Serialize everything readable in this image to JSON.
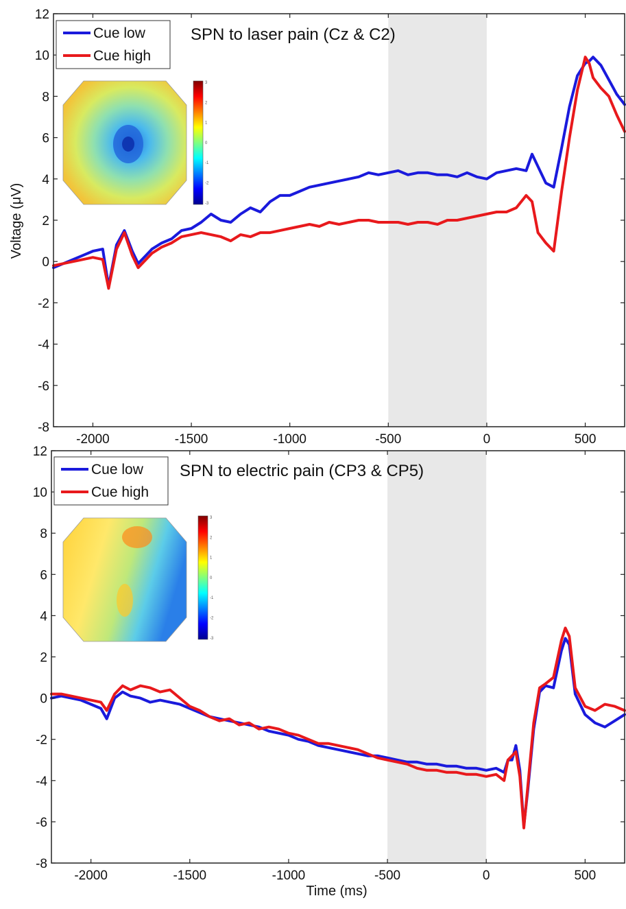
{
  "figure": {
    "xlabel": "Time (ms)",
    "ylabel": "Voltage (μV)"
  },
  "chart_data": [
    {
      "type": "line",
      "title": "SPN to laser pain (Cz & C2)",
      "xlabel": "",
      "ylabel": "Voltage (μV)",
      "xlim": [
        -2200,
        700
      ],
      "ylim": [
        -8,
        12
      ],
      "xticks": [
        -2000,
        -1500,
        -1000,
        -500,
        0,
        500
      ],
      "yticks": [
        -8,
        -6,
        -4,
        -2,
        0,
        2,
        4,
        6,
        8,
        10,
        12
      ],
      "shaded_interval": [
        -500,
        0
      ],
      "legend": "top-left",
      "colorbar": [
        "3",
        "2",
        "1",
        "0",
        "-1",
        "-2",
        "-3"
      ],
      "series": [
        {
          "name": "Cue low",
          "color": "#1a1adc",
          "x": [
            -2200,
            -2150,
            -2100,
            -2050,
            -2000,
            -1950,
            -1920,
            -1880,
            -1840,
            -1800,
            -1770,
            -1730,
            -1700,
            -1650,
            -1600,
            -1550,
            -1500,
            -1450,
            -1400,
            -1350,
            -1300,
            -1250,
            -1200,
            -1150,
            -1100,
            -1050,
            -1000,
            -950,
            -900,
            -850,
            -800,
            -750,
            -700,
            -650,
            -600,
            -550,
            -500,
            -450,
            -400,
            -350,
            -300,
            -250,
            -200,
            -150,
            -100,
            -50,
            0,
            50,
            100,
            150,
            200,
            230,
            260,
            300,
            340,
            380,
            420,
            460,
            500,
            520,
            540,
            580,
            620,
            660,
            700
          ],
          "y": [
            -0.3,
            -0.1,
            0.1,
            0.3,
            0.5,
            0.6,
            -1.2,
            0.8,
            1.5,
            0.5,
            -0.1,
            0.3,
            0.6,
            0.9,
            1.1,
            1.5,
            1.6,
            1.9,
            2.3,
            2.0,
            1.9,
            2.3,
            2.6,
            2.4,
            2.9,
            3.2,
            3.2,
            3.4,
            3.6,
            3.7,
            3.8,
            3.9,
            4.0,
            4.1,
            4.3,
            4.2,
            4.3,
            4.4,
            4.2,
            4.3,
            4.3,
            4.2,
            4.2,
            4.1,
            4.3,
            4.1,
            4.0,
            4.3,
            4.4,
            4.5,
            4.4,
            5.2,
            4.6,
            3.8,
            3.6,
            5.5,
            7.5,
            9.0,
            9.6,
            9.7,
            9.9,
            9.5,
            8.8,
            8.1,
            7.6
          ]
        },
        {
          "name": "Cue high",
          "color": "#e8191c",
          "x": [
            -2200,
            -2150,
            -2100,
            -2050,
            -2000,
            -1950,
            -1920,
            -1880,
            -1840,
            -1800,
            -1770,
            -1730,
            -1700,
            -1650,
            -1600,
            -1550,
            -1500,
            -1450,
            -1400,
            -1350,
            -1300,
            -1250,
            -1200,
            -1150,
            -1100,
            -1050,
            -1000,
            -950,
            -900,
            -850,
            -800,
            -750,
            -700,
            -650,
            -600,
            -550,
            -500,
            -450,
            -400,
            -350,
            -300,
            -250,
            -200,
            -150,
            -100,
            -50,
            0,
            50,
            100,
            150,
            200,
            230,
            260,
            300,
            340,
            380,
            420,
            460,
            500,
            520,
            540,
            580,
            620,
            660,
            700
          ],
          "y": [
            -0.2,
            -0.1,
            0.0,
            0.1,
            0.2,
            0.1,
            -1.3,
            0.6,
            1.4,
            0.3,
            -0.3,
            0.1,
            0.4,
            0.7,
            0.9,
            1.2,
            1.3,
            1.4,
            1.3,
            1.2,
            1.0,
            1.3,
            1.2,
            1.4,
            1.4,
            1.5,
            1.6,
            1.7,
            1.8,
            1.7,
            1.9,
            1.8,
            1.9,
            2.0,
            2.0,
            1.9,
            1.9,
            1.9,
            1.8,
            1.9,
            1.9,
            1.8,
            2.0,
            2.0,
            2.1,
            2.2,
            2.3,
            2.4,
            2.4,
            2.6,
            3.2,
            2.9,
            1.4,
            0.9,
            0.5,
            3.4,
            6.0,
            8.3,
            9.9,
            9.6,
            8.9,
            8.4,
            8.0,
            7.1,
            6.3
          ]
        }
      ]
    },
    {
      "type": "line",
      "title": "SPN to electric pain (CP3 & CP5)",
      "xlabel": "Time (ms)",
      "ylabel": "",
      "xlim": [
        -2200,
        700
      ],
      "ylim": [
        -8,
        12
      ],
      "xticks": [
        -2000,
        -1500,
        -1000,
        -500,
        0,
        500
      ],
      "yticks": [
        -8,
        -6,
        -4,
        -2,
        0,
        2,
        4,
        6,
        8,
        10,
        12
      ],
      "shaded_interval": [
        -500,
        0
      ],
      "legend": "top-left",
      "colorbar": [
        "3",
        "2",
        "1",
        "0",
        "-1",
        "-2",
        "-3"
      ],
      "series": [
        {
          "name": "Cue low",
          "color": "#1a1adc",
          "x": [
            -2200,
            -2150,
            -2100,
            -2050,
            -2000,
            -1950,
            -1920,
            -1880,
            -1840,
            -1800,
            -1750,
            -1700,
            -1650,
            -1600,
            -1550,
            -1500,
            -1450,
            -1400,
            -1350,
            -1300,
            -1250,
            -1200,
            -1150,
            -1100,
            -1050,
            -1000,
            -950,
            -900,
            -850,
            -800,
            -750,
            -700,
            -650,
            -600,
            -550,
            -500,
            -450,
            -400,
            -350,
            -300,
            -250,
            -200,
            -150,
            -100,
            -50,
            0,
            50,
            90,
            110,
            130,
            150,
            170,
            190,
            210,
            240,
            270,
            300,
            340,
            380,
            400,
            420,
            450,
            500,
            550,
            600,
            650,
            700
          ],
          "y": [
            0.0,
            0.1,
            0.0,
            -0.1,
            -0.3,
            -0.5,
            -1.0,
            0.0,
            0.3,
            0.1,
            0.0,
            -0.2,
            -0.1,
            -0.2,
            -0.3,
            -0.5,
            -0.7,
            -0.9,
            -1.0,
            -1.1,
            -1.2,
            -1.3,
            -1.4,
            -1.6,
            -1.7,
            -1.8,
            -2.0,
            -2.1,
            -2.3,
            -2.4,
            -2.5,
            -2.6,
            -2.7,
            -2.8,
            -2.8,
            -2.9,
            -3.0,
            -3.1,
            -3.1,
            -3.2,
            -3.2,
            -3.3,
            -3.3,
            -3.4,
            -3.4,
            -3.5,
            -3.4,
            -3.6,
            -3.0,
            -3.0,
            -2.3,
            -3.5,
            -6.2,
            -4.5,
            -1.5,
            0.3,
            0.6,
            0.5,
            2.3,
            2.9,
            2.6,
            0.2,
            -0.8,
            -1.2,
            -1.4,
            -1.1,
            -0.8
          ]
        },
        {
          "name": "Cue high",
          "color": "#e8191c",
          "x": [
            -2200,
            -2150,
            -2100,
            -2050,
            -2000,
            -1950,
            -1920,
            -1880,
            -1840,
            -1800,
            -1750,
            -1700,
            -1650,
            -1600,
            -1550,
            -1500,
            -1450,
            -1400,
            -1350,
            -1300,
            -1250,
            -1200,
            -1150,
            -1100,
            -1050,
            -1000,
            -950,
            -900,
            -850,
            -800,
            -750,
            -700,
            -650,
            -600,
            -550,
            -500,
            -450,
            -400,
            -350,
            -300,
            -250,
            -200,
            -150,
            -100,
            -50,
            0,
            50,
            90,
            110,
            130,
            150,
            170,
            190,
            210,
            240,
            270,
            300,
            340,
            380,
            400,
            420,
            450,
            500,
            550,
            600,
            650,
            700
          ],
          "y": [
            0.2,
            0.2,
            0.1,
            0.0,
            -0.1,
            -0.2,
            -0.6,
            0.2,
            0.6,
            0.4,
            0.6,
            0.5,
            0.3,
            0.4,
            0.0,
            -0.4,
            -0.6,
            -0.9,
            -1.1,
            -1.0,
            -1.3,
            -1.2,
            -1.5,
            -1.4,
            -1.5,
            -1.7,
            -1.8,
            -2.0,
            -2.2,
            -2.2,
            -2.3,
            -2.4,
            -2.5,
            -2.7,
            -2.9,
            -3.0,
            -3.1,
            -3.2,
            -3.4,
            -3.5,
            -3.5,
            -3.6,
            -3.6,
            -3.7,
            -3.7,
            -3.8,
            -3.7,
            -4.0,
            -3.0,
            -2.8,
            -2.6,
            -3.8,
            -6.3,
            -4.3,
            -1.2,
            0.5,
            0.7,
            1.0,
            2.8,
            3.4,
            3.0,
            0.5,
            -0.4,
            -0.6,
            -0.3,
            -0.4,
            -0.6
          ]
        }
      ]
    }
  ]
}
